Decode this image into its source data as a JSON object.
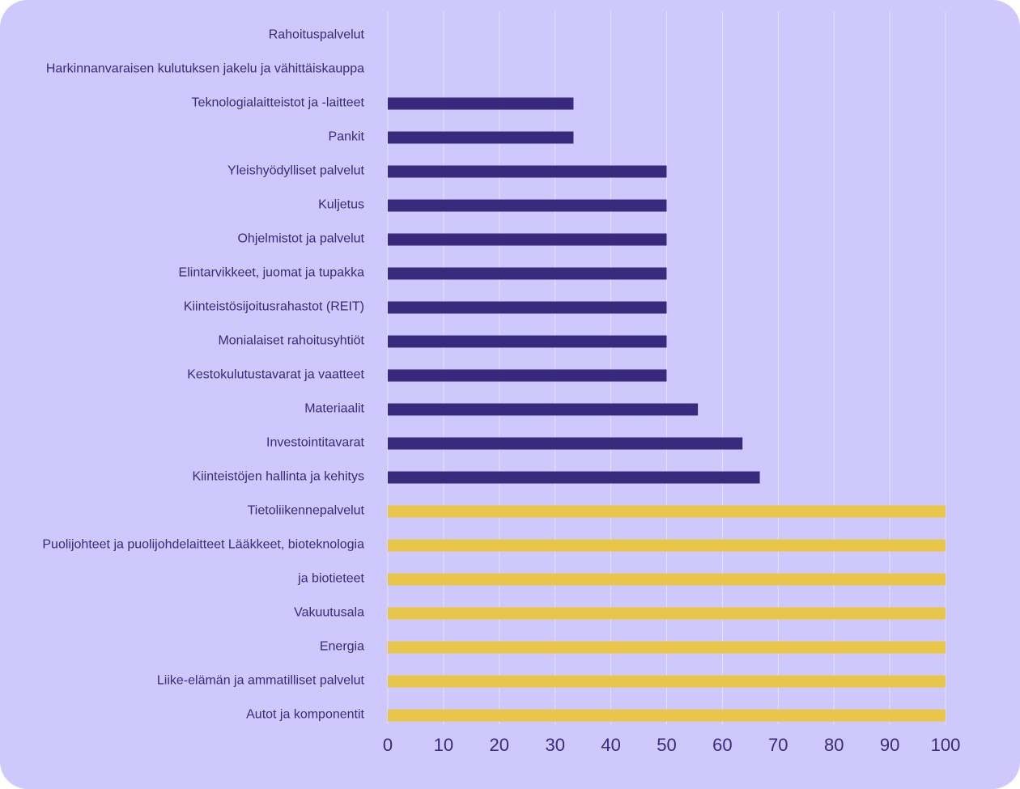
{
  "chart_data": {
    "type": "bar",
    "orientation": "horizontal",
    "title": "",
    "xlabel": "",
    "ylabel": "",
    "categories": [
      "Rahoituspalvelut",
      "Harkinnanvaraisen kulutuksen jakelu ja vähittäiskauppa",
      "Teknologialaitteistot ja -laitteet",
      "Pankit",
      "Yleishyödylliset palvelut",
      "Kuljetus",
      "Ohjelmistot ja palvelut",
      "Elintarvikkeet, juomat ja tupakka",
      "Kiinteistösijoitusrahastot (REIT)",
      "Monialaiset rahoitusyhtiöt",
      "Kestokulutustavarat ja vaatteet",
      "Materiaalit",
      "Investointitavarat",
      "Kiinteistöjen hallinta ja kehitys",
      "Tietoliikennepalvelut",
      "Puolijohteet ja puolijohdelaitteet Lääkkeet, bioteknologia",
      "ja biotieteet",
      "Vakuutusala",
      "Energia",
      "Liike-elämän ja ammatilliset palvelut",
      "Autot ja komponentit"
    ],
    "values": [
      0,
      0,
      33.3,
      33.3,
      50,
      50,
      50,
      50,
      50,
      50,
      50,
      55.6,
      63.6,
      66.7,
      100,
      100,
      100,
      100,
      100,
      100,
      100
    ],
    "bar_colors": [
      "#3a2a7e",
      "#3a2a7e",
      "#3a2a7e",
      "#3a2a7e",
      "#3a2a7e",
      "#3a2a7e",
      "#3a2a7e",
      "#3a2a7e",
      "#3a2a7e",
      "#3a2a7e",
      "#3a2a7e",
      "#3a2a7e",
      "#3a2a7e",
      "#3a2a7e",
      "#e7c64a",
      "#e7c64a",
      "#e7c64a",
      "#e7c64a",
      "#e7c64a",
      "#e7c64a",
      "#e7c64a"
    ],
    "xlim": [
      0,
      100
    ],
    "x_ticks": [
      0,
      10,
      20,
      30,
      40,
      50,
      60,
      70,
      80,
      90,
      100
    ],
    "grid": "vertical",
    "legend": "none"
  },
  "colors": {
    "background": "#cfc8fc",
    "label_text": "#3a2a7e",
    "tick_text": "#3a2a7e",
    "gridline": "#e6e1ff",
    "dark_bar": "#3a2a7e",
    "highlight_bar": "#e7c64a"
  }
}
